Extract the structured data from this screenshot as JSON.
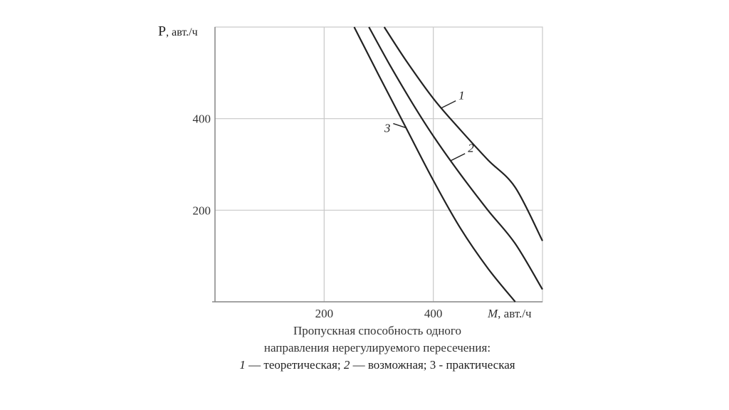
{
  "chart_data": {
    "type": "line",
    "ylabel_symbol": "P",
    "ylabel_unit": ", авт./ч",
    "xlabel_symbol": "M",
    "xlabel_unit": ", авт./ч",
    "xlim": [
      0,
      600
    ],
    "ylim": [
      0,
      600
    ],
    "x_ticks": [
      200,
      400
    ],
    "y_ticks": [
      200,
      400
    ],
    "grid": true,
    "series": [
      {
        "name": "1",
        "x": [
          310,
          350,
          400,
          450,
          500,
          550,
          600
        ],
        "y": [
          600,
          527,
          444,
          375,
          310,
          250,
          133
        ]
      },
      {
        "name": "2",
        "x": [
          282,
          320,
          360,
          400,
          450,
          500,
          550,
          600
        ],
        "y": [
          600,
          518,
          437,
          362,
          278,
          200,
          127,
          27
        ]
      },
      {
        "name": "3",
        "x": [
          255,
          300,
          350,
          400,
          450,
          500,
          550
        ],
        "y": [
          600,
          495,
          380,
          265,
          160,
          73,
          0
        ]
      }
    ],
    "annotations": [
      {
        "label": "1",
        "series": "1",
        "at_x": 415
      },
      {
        "label": "2",
        "series": "2",
        "at_x": 432
      },
      {
        "label": "3",
        "series": "3",
        "at_x": 350
      }
    ]
  },
  "caption": {
    "line1": "Пропускная способность одного",
    "line2": "направления нерегулируемого пересечения:",
    "l3_n1": "1",
    "l3_t1": " — теоретическая; ",
    "l3_n2": "2",
    "l3_t2": " — возможная;  ",
    "l3_n3": "3",
    "l3_t3": " - практическая"
  },
  "colors": {
    "grid": "#c8c8c8",
    "axis": "#888888",
    "curve": "#222222",
    "text": "#333333"
  }
}
